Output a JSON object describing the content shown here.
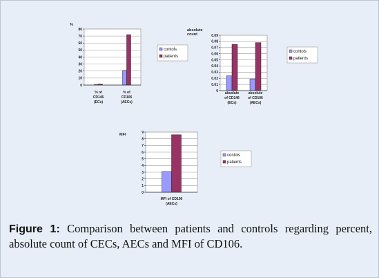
{
  "caption": {
    "label": "Figure 1:",
    "text": " Comparison between patients and controls regarding percent, absolute count of CECs, AECs and MFI of CD106."
  },
  "colors": {
    "controls": "#9999ff",
    "patients": "#993366"
  },
  "chart_data": [
    {
      "type": "bar",
      "title": "",
      "ylabel": "%",
      "ylim": [
        0,
        80
      ],
      "yticks": [
        "0",
        "10",
        "20",
        "30",
        "40",
        "50",
        "60",
        "70",
        "80"
      ],
      "categories": [
        [
          "% of",
          "CD146",
          "(ECs)"
        ],
        [
          "% of",
          "CD106",
          "(AECs)"
        ]
      ],
      "series": [
        {
          "name": "contols",
          "values": [
            0.8,
            21
          ]
        },
        {
          "name": "patients",
          "values": [
            1.5,
            72
          ]
        }
      ],
      "legend": "right"
    },
    {
      "type": "bar",
      "title": "",
      "ylabel": [
        "absolute",
        "count"
      ],
      "ylim": [
        0,
        0.09
      ],
      "yticks": [
        "0",
        "0.01",
        "0.02",
        "0.03",
        "0.04",
        "0.05",
        "0.06",
        "0.07",
        "0.08",
        "0.09"
      ],
      "categories": [
        [
          "absolute",
          "of CD146",
          "(ECs)"
        ],
        [
          "absolute",
          "of CD106",
          "(AECs)"
        ]
      ],
      "series": [
        {
          "name": "contols",
          "values": [
            0.024,
            0.019
          ]
        },
        {
          "name": "patients",
          "values": [
            0.075,
            0.078
          ]
        }
      ],
      "legend": "right"
    },
    {
      "type": "bar",
      "title": "",
      "ylabel": "MFI",
      "ylim": [
        0,
        9
      ],
      "yticks": [
        "0",
        "1",
        "2",
        "3",
        "4",
        "5",
        "6",
        "7",
        "8",
        "9"
      ],
      "categories": [
        [
          "MFI of CD106",
          "(AECs)"
        ]
      ],
      "series": [
        {
          "name": "contols",
          "values": [
            3.1
          ]
        },
        {
          "name": "patients",
          "values": [
            8.6
          ]
        }
      ],
      "legend": "right"
    }
  ]
}
